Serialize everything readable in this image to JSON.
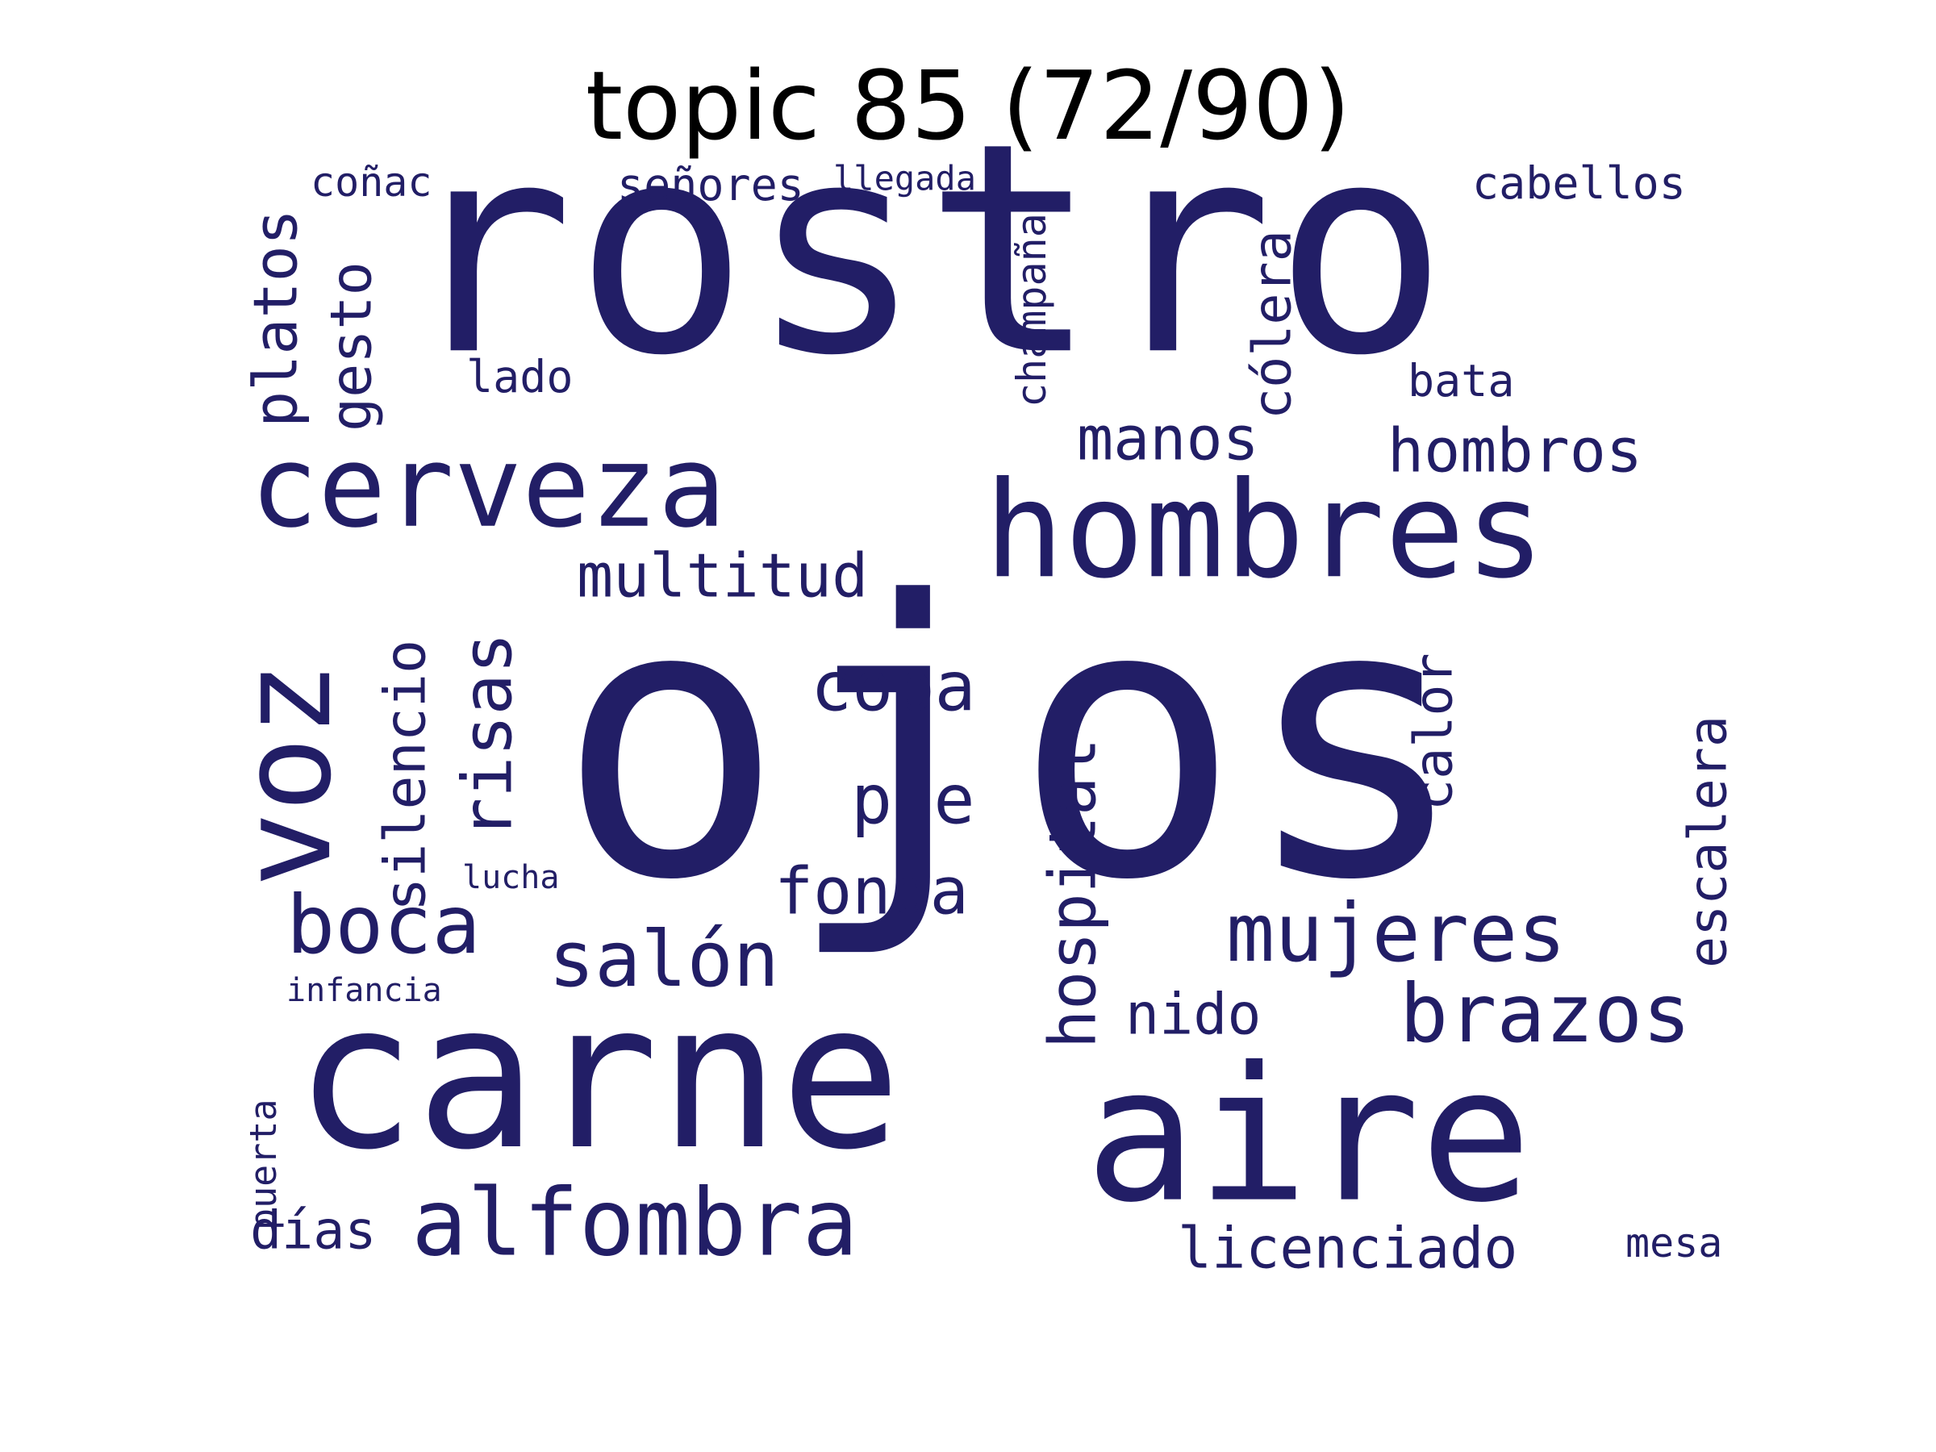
{
  "title": "topic 85 (72/90)",
  "word_color": "#221e66",
  "background_color": "#ffffff",
  "words": [
    {
      "text": "ojos",
      "rotated": false
    },
    {
      "text": "rostro",
      "rotated": false
    },
    {
      "text": "carne",
      "rotated": false
    },
    {
      "text": "aire",
      "rotated": false
    },
    {
      "text": "hombres",
      "rotated": false
    },
    {
      "text": "cerveza",
      "rotated": false
    },
    {
      "text": "voz",
      "rotated": true
    },
    {
      "text": "alfombra",
      "rotated": false
    },
    {
      "text": "mujeres",
      "rotated": false
    },
    {
      "text": "brazos",
      "rotated": false
    },
    {
      "text": "boca",
      "rotated": false
    },
    {
      "text": "salón",
      "rotated": false
    },
    {
      "text": "hospital",
      "rotated": true
    },
    {
      "text": "multitud",
      "rotated": false
    },
    {
      "text": "risas",
      "rotated": true
    },
    {
      "text": "silencio",
      "rotated": true
    },
    {
      "text": "copa",
      "rotated": false
    },
    {
      "text": "pie",
      "rotated": false
    },
    {
      "text": "fonda",
      "rotated": false
    },
    {
      "text": "hombros",
      "rotated": false
    },
    {
      "text": "manos",
      "rotated": false
    },
    {
      "text": "nido",
      "rotated": false
    },
    {
      "text": "licenciado",
      "rotated": false
    },
    {
      "text": "escalera",
      "rotated": true
    },
    {
      "text": "calor",
      "rotated": true
    },
    {
      "text": "cólera",
      "rotated": true
    },
    {
      "text": "platos",
      "rotated": true
    },
    {
      "text": "gesto",
      "rotated": true
    },
    {
      "text": "días",
      "rotated": false
    },
    {
      "text": "cabellos",
      "rotated": false
    },
    {
      "text": "señores",
      "rotated": false
    },
    {
      "text": "lado",
      "rotated": false
    },
    {
      "text": "bata",
      "rotated": false
    },
    {
      "text": "champaña",
      "rotated": true
    },
    {
      "text": "coñac",
      "rotated": false
    },
    {
      "text": "mesa",
      "rotated": false
    },
    {
      "text": "puerta",
      "rotated": true
    },
    {
      "text": "llegada",
      "rotated": false
    },
    {
      "text": "infancia",
      "rotated": false
    },
    {
      "text": "lucha",
      "rotated": false
    }
  ]
}
